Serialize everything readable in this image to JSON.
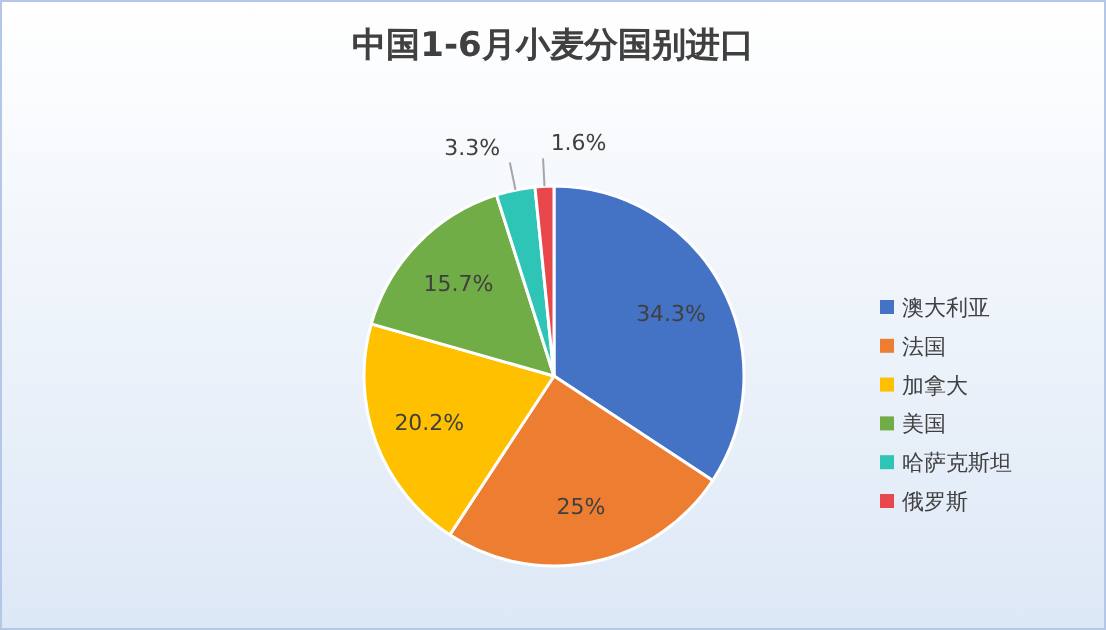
{
  "chart_data": {
    "type": "pie",
    "title": "中国1-6月小麦分国别进口",
    "categories": [
      "澳大利亚",
      "法国",
      "加拿大",
      "美国",
      "哈萨克斯坦",
      "俄罗斯"
    ],
    "values": [
      34.3,
      25,
      20.2,
      15.7,
      3.3,
      1.6
    ],
    "value_labels": [
      "34.3%",
      "25%",
      "20.2%",
      "15.7%",
      "3.3%",
      "1.6%"
    ],
    "colors": [
      "#4472c4",
      "#ed7d31",
      "#ffc000",
      "#70ad47",
      "#2ec4b6",
      "#e8474c"
    ],
    "legend": "right"
  }
}
